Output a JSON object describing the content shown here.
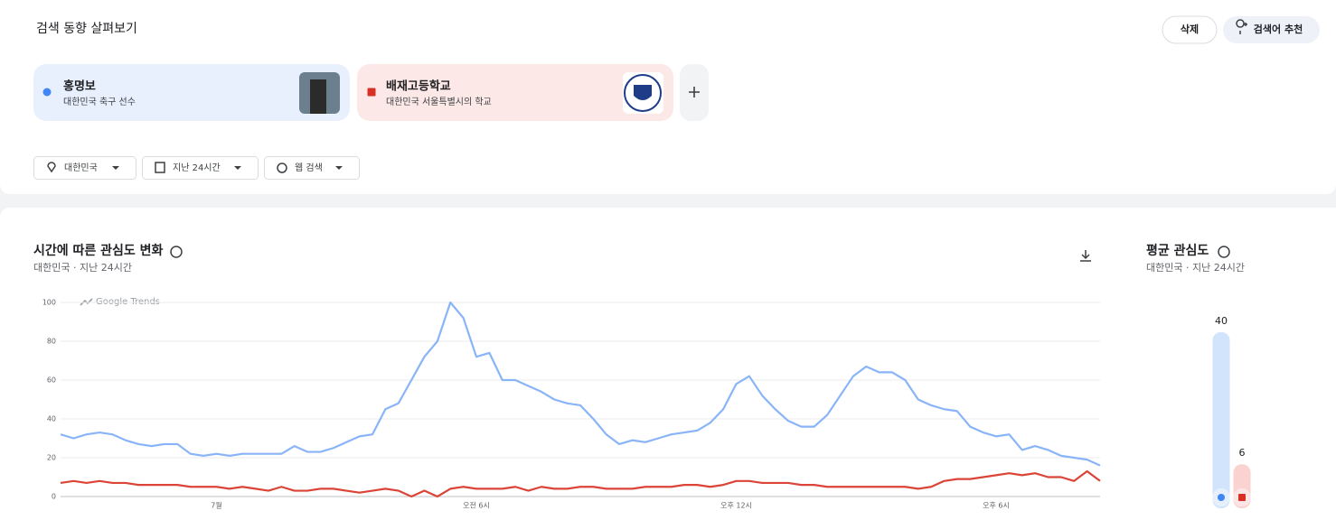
{
  "header": {
    "title": "검색 동향 살펴보기",
    "delete": "삭제",
    "suggest": "검색어 추천"
  },
  "terms": [
    {
      "name": "홍명보",
      "description": "대한민국 축구 선수",
      "color": "#4285f4"
    },
    {
      "name": "배재고등학교",
      "description": "대한민국 서울특별시의 학교",
      "color": "#d93025"
    }
  ],
  "filters": [
    "대한민국",
    "지난 24시간",
    "웹 검색"
  ],
  "chart_data": [
    {
      "type": "line",
      "title": "시간에 따른 관심도 변화",
      "subtitle": "대한민국 · 지난 24시간",
      "watermark": "Google Trends",
      "categories": [
        null,
        null,
        null,
        null,
        null,
        null,
        null,
        null,
        null,
        null,
        null,
        null,
        "7월",
        null,
        null,
        null,
        null,
        null,
        null,
        null,
        null,
        null,
        null,
        null,
        null,
        null,
        null,
        null,
        null,
        null,
        null,
        null,
        "오전 6시",
        null,
        null,
        null,
        null,
        null,
        null,
        null,
        null,
        null,
        null,
        null,
        null,
        null,
        null,
        null,
        null,
        null,
        null,
        null,
        "오후 12시",
        null,
        null,
        null,
        null,
        null,
        null,
        null,
        null,
        null,
        null,
        null,
        null,
        null,
        null,
        null,
        null,
        null,
        null,
        null,
        "오후 6시",
        null,
        null,
        null,
        null,
        null,
        null,
        null,
        null
      ],
      "series": [
        {
          "color": "#8ab4f8",
          "values": [
            32,
            30,
            32,
            33,
            32,
            29,
            27,
            26,
            27,
            27,
            22,
            21,
            22,
            21,
            22,
            22,
            22,
            22,
            26,
            23,
            23,
            25,
            28,
            31,
            32,
            45,
            48,
            60,
            72,
            80,
            100,
            92,
            72,
            74,
            60,
            60,
            57,
            54,
            50,
            48,
            47,
            40,
            32,
            27,
            29,
            28,
            30,
            32,
            33,
            34,
            38,
            45,
            58,
            62,
            52,
            45,
            39,
            36,
            36,
            42,
            52,
            62,
            67,
            64,
            64,
            60,
            50,
            47,
            45,
            44,
            36,
            33,
            31,
            32,
            24,
            26,
            24,
            21,
            20,
            19,
            16
          ]
        },
        {
          "color": "#db4437",
          "values": [
            7,
            8,
            7,
            8,
            7,
            7,
            6,
            6,
            6,
            6,
            5,
            5,
            5,
            4,
            5,
            4,
            3,
            5,
            3,
            3,
            4,
            4,
            3,
            2,
            3,
            4,
            3,
            0,
            3,
            0,
            4,
            5,
            4,
            4,
            4,
            5,
            3,
            5,
            4,
            4,
            5,
            5,
            4,
            4,
            4,
            5,
            5,
            5,
            6,
            6,
            5,
            6,
            8,
            8,
            7,
            7,
            7,
            6,
            6,
            5,
            5,
            5,
            5,
            5,
            5,
            5,
            4,
            5,
            8,
            9,
            9,
            10,
            11,
            12,
            11,
            12,
            10,
            10,
            8,
            13,
            8
          ]
        }
      ],
      "ylim": [
        0,
        100
      ],
      "yticks": [
        0,
        20,
        40,
        60,
        80,
        100
      ],
      "grid": true
    },
    {
      "type": "bar",
      "title": "평균 관심도",
      "subtitle": "대한민국 · 지난 24시간",
      "values": [
        40,
        6
      ],
      "colors": [
        "#d2e3fc",
        "#fad2cf"
      ],
      "ylim": [
        0,
        40
      ]
    }
  ]
}
